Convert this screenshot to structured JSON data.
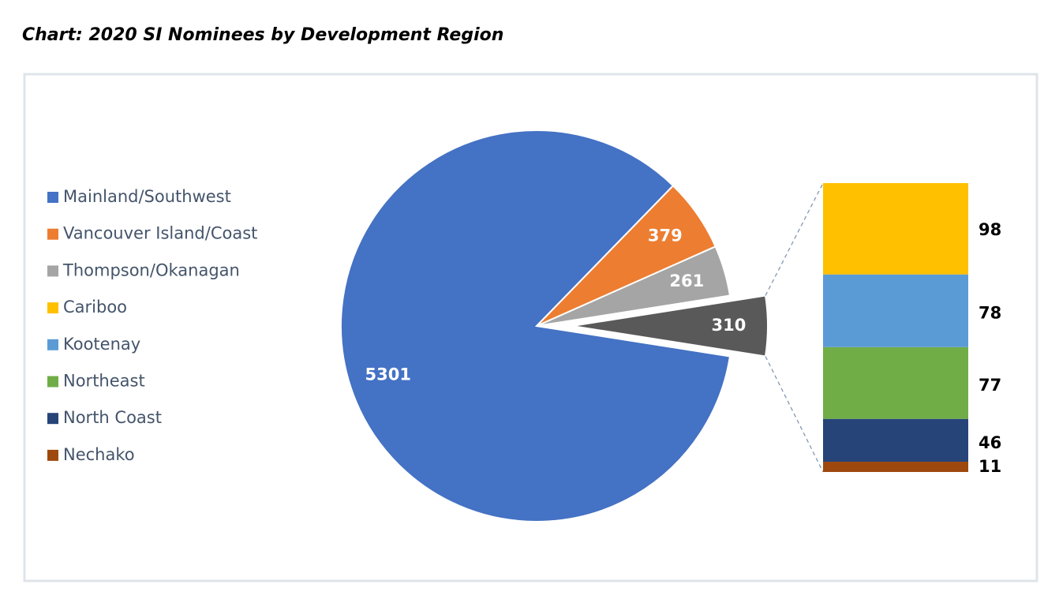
{
  "chart_data": {
    "type": "bar-of-pie",
    "title": "Chart: 2020 SI Nominees by Development Region",
    "pie": {
      "categories": [
        "Mainland/Southwest",
        "Vancouver Island/Coast",
        "Thompson/Okanagan",
        null
      ],
      "values": [
        5301,
        379,
        261,
        310
      ],
      "colors": [
        "#4472c4",
        "#ed7d31",
        "#a5a5a5",
        "#595959"
      ]
    },
    "bar": {
      "categories": [
        "Cariboo",
        "Kootenay",
        "Northeast",
        "North Coast",
        "Nechako"
      ],
      "values": [
        98,
        78,
        77,
        46,
        11
      ],
      "colors": [
        "#ffc000",
        "#5b9bd5",
        "#70ad47",
        "#264478",
        "#9e480e"
      ]
    }
  }
}
